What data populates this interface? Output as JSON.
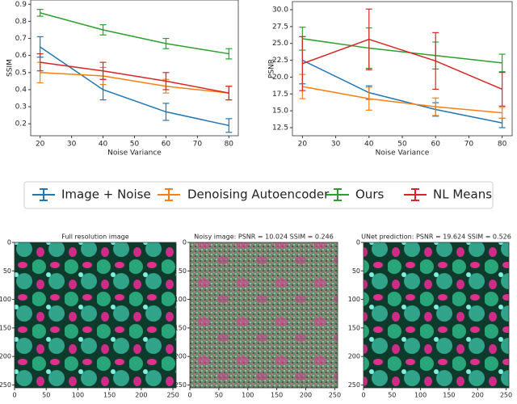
{
  "chart_data": [
    {
      "type": "line",
      "y_label": "SSIM",
      "x_label": "Noise Variance",
      "x": [
        20,
        40,
        60,
        80
      ],
      "xlim": [
        17,
        83
      ],
      "xticks": [
        20,
        30,
        40,
        50,
        60,
        70,
        80
      ],
      "ylim": [
        0.13,
        0.925
      ],
      "yticks": [
        0.2,
        0.3,
        0.4,
        0.5,
        0.6,
        0.7,
        0.8,
        0.9
      ],
      "series": [
        {
          "name": "Image + Noise",
          "color": "#1f77b4",
          "values": [
            0.65,
            0.4,
            0.27,
            0.19
          ],
          "errors": [
            0.06,
            0.06,
            0.05,
            0.04
          ]
        },
        {
          "name": "Denoising Autoencoder",
          "color": "#ff7f0e",
          "values": [
            0.5,
            0.48,
            0.42,
            0.38
          ],
          "errors": [
            0.06,
            0.05,
            0.04,
            0.04
          ]
        },
        {
          "name": "Ours",
          "color": "#2ca02c",
          "values": [
            0.85,
            0.75,
            0.67,
            0.61
          ],
          "errors": [
            0.02,
            0.03,
            0.03,
            0.03
          ]
        },
        {
          "name": "NL Means",
          "color": "#d62728",
          "values": [
            0.56,
            0.51,
            0.45,
            0.38
          ],
          "errors": [
            0.05,
            0.05,
            0.05,
            0.04
          ]
        }
      ]
    },
    {
      "type": "line",
      "y_label": "PSNR",
      "x_label": "Noise Variance",
      "x": [
        20,
        40,
        60,
        80
      ],
      "xlim": [
        17,
        83
      ],
      "xticks": [
        20,
        30,
        40,
        50,
        60,
        70,
        80
      ],
      "ylim": [
        11.3,
        31.2
      ],
      "yticks": [
        12.5,
        {
          "value": 15,
          "label": "15.0"
        },
        17.5,
        {
          "value": 20,
          "label": "20.0"
        },
        22.5,
        {
          "value": 25,
          "label": "25.0"
        },
        27.5,
        {
          "value": 30,
          "label": "30.0"
        }
      ],
      "series": [
        {
          "name": "Image + Noise",
          "color": "#1f77b4",
          "values": [
            22.5,
            17.7,
            15.2,
            13.2
          ],
          "errors": [
            3.5,
            1.0,
            1.0,
            0.7
          ]
        },
        {
          "name": "Denoising Autoencoder",
          "color": "#ff7f0e",
          "values": [
            18.6,
            16.8,
            15.6,
            14.7
          ],
          "errors": [
            1.8,
            1.7,
            1.3,
            0.8
          ]
        },
        {
          "name": "Ours",
          "color": "#2ca02c",
          "values": [
            25.7,
            24.3,
            23.2,
            22.1
          ],
          "errors": [
            1.7,
            3.0,
            2.0,
            1.3
          ]
        },
        {
          "name": "NL Means",
          "color": "#d62728",
          "values": [
            22.0,
            25.6,
            22.4,
            18.2
          ],
          "errors": [
            4.0,
            4.5,
            4.2,
            2.5
          ]
        }
      ]
    }
  ],
  "images": [
    {
      "title": "Full resolution image",
      "xlim": [
        0,
        255
      ],
      "ylim": [
        0,
        255
      ],
      "xticks": [
        0,
        50,
        100,
        150,
        200,
        250
      ],
      "yticks": [
        0,
        50,
        100,
        150,
        200,
        250
      ]
    },
    {
      "title": "Noisy image: PSNR = 10.024 SSIM = 0.246",
      "xlim": [
        0,
        255
      ],
      "ylim": [
        0,
        255
      ],
      "xticks": [
        0,
        50,
        100,
        150,
        200,
        250
      ],
      "yticks": [
        0,
        50,
        100,
        150,
        200,
        250
      ]
    },
    {
      "title": "UNet prediction: PSNR = 19.624 SSIM = 0.526",
      "xlim": [
        0,
        255
      ],
      "ylim": [
        0,
        255
      ],
      "xticks": [
        0,
        50,
        100,
        150,
        200,
        250
      ],
      "yticks": [
        0,
        50,
        100,
        150,
        200,
        250
      ]
    }
  ]
}
